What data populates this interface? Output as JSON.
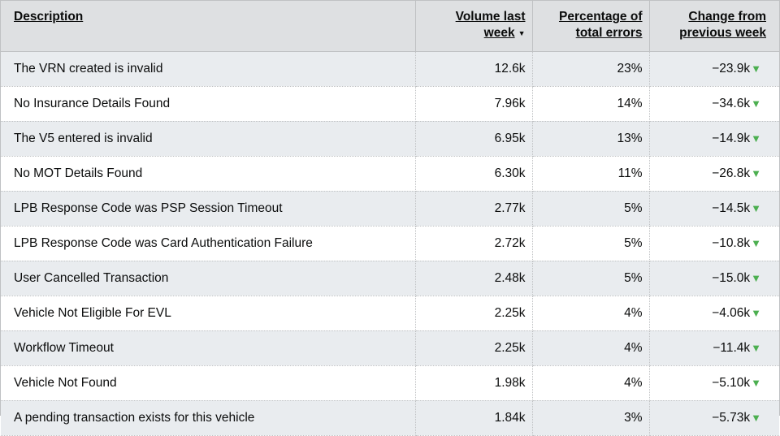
{
  "table": {
    "headers": {
      "description": "Description",
      "volume_line1": "Volume last",
      "volume_line2": "week",
      "sort_indicator": "▼",
      "percentage_line1": "Percentage of",
      "percentage_line2": "total errors",
      "change_line1": "Change from",
      "change_line2": "previous week"
    },
    "trend_icon": "▼",
    "trend_color": "#4caf50",
    "rows": [
      {
        "description": "The VRN created is invalid",
        "volume": "12.6k",
        "percentage": "23%",
        "change": "−23.9k"
      },
      {
        "description": "No Insurance Details Found",
        "volume": "7.96k",
        "percentage": "14%",
        "change": "−34.6k"
      },
      {
        "description": "The V5 entered is invalid",
        "volume": "6.95k",
        "percentage": "13%",
        "change": "−14.9k"
      },
      {
        "description": "No MOT Details Found",
        "volume": "6.30k",
        "percentage": "11%",
        "change": "−26.8k"
      },
      {
        "description": "LPB Response Code was PSP Session Timeout",
        "volume": "2.77k",
        "percentage": "5%",
        "change": "−14.5k"
      },
      {
        "description": "LPB Response Code was Card Authentication Failure",
        "volume": "2.72k",
        "percentage": "5%",
        "change": "−10.8k"
      },
      {
        "description": "User Cancelled Transaction",
        "volume": "2.48k",
        "percentage": "5%",
        "change": "−15.0k"
      },
      {
        "description": "Vehicle Not Eligible For EVL",
        "volume": "2.25k",
        "percentage": "4%",
        "change": "−4.06k"
      },
      {
        "description": "Workflow Timeout",
        "volume": "2.25k",
        "percentage": "4%",
        "change": "−11.4k"
      },
      {
        "description": "Vehicle Not Found",
        "volume": "1.98k",
        "percentage": "4%",
        "change": "−5.10k"
      },
      {
        "description": "A pending transaction exists for this vehicle",
        "volume": "1.84k",
        "percentage": "3%",
        "change": "−5.73k"
      }
    ]
  }
}
